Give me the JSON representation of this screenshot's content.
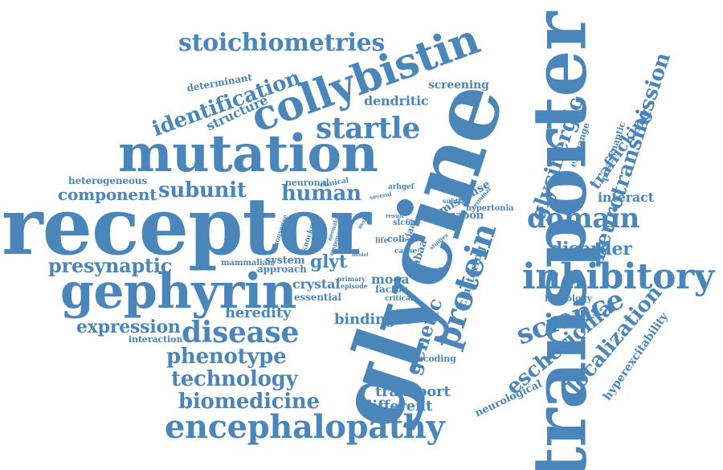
{
  "cloud": {
    "color": "#4a86b9",
    "words": [
      "transporter",
      "glycine",
      "receptor",
      "mutation",
      "collybistin",
      "gephyrin",
      "inhibitory",
      "encephalopathy",
      "stoichiometries",
      "startle",
      "disease",
      "protein",
      "domain",
      "neurotransmission",
      "identification",
      "subunit",
      "human",
      "component",
      "presynaptic",
      "expression",
      "phenotype",
      "technology",
      "biomedicine",
      "science",
      "escherichia",
      "localization",
      "glycinergic",
      "disorder",
      "genetic",
      "heredity",
      "binding",
      "different",
      "transport",
      "trafficking",
      "interact",
      "structure",
      "dendritic",
      "screening",
      "determinant",
      "heterogeneous",
      "neuronal",
      "clinical",
      "arhgef",
      "crystal",
      "essential",
      "moea",
      "factor",
      "glyt",
      "system",
      "approach",
      "mammalian",
      "missense",
      "clustering",
      "gabon",
      "hypertonia",
      "subtype",
      "exchange",
      "postsynaptic",
      "homology",
      "hyperexcitability",
      "neurological",
      "interaction",
      "encoding",
      "gabaa",
      "slc6a",
      "coli",
      "life",
      "viaat",
      "cause",
      "critical",
      "episode",
      "primary",
      "knockout",
      "nonsense",
      "result",
      "several",
      "neonatal",
      "terminal",
      "major",
      "response",
      "studies",
      "model",
      "patient"
    ]
  }
}
